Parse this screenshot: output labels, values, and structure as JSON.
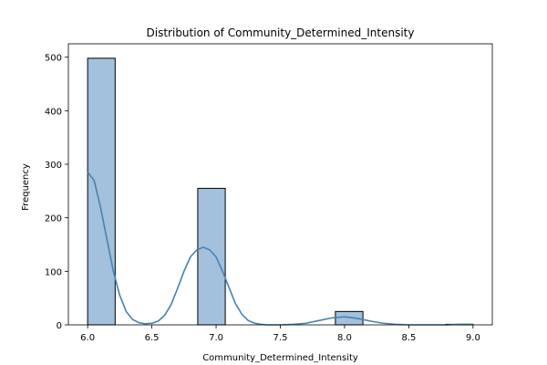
{
  "chart_data": {
    "type": "bar",
    "subtype": "histogram",
    "title": "Distribution of Community_Determined_Intensity",
    "xlabel": "Community_Determined_Intensity",
    "ylabel": "Frequency",
    "xlim": [
      5.85,
      9.15
    ],
    "ylim": [
      0,
      525
    ],
    "x_ticks": [
      "6.0",
      "6.5",
      "7.0",
      "7.5",
      "8.0",
      "8.5",
      "9.0"
    ],
    "y_ticks": [
      "0",
      "100",
      "200",
      "300",
      "400",
      "500"
    ],
    "grid": false,
    "legend": "none",
    "bar_color": "#a3c0dc",
    "bar_edge_color": "#000000",
    "kde_color": "#4682b4",
    "bins": [
      {
        "x0": 6.0,
        "x1": 6.2143,
        "count": 498
      },
      {
        "x0": 6.2143,
        "x1": 6.4286,
        "count": 0
      },
      {
        "x0": 6.4286,
        "x1": 6.6429,
        "count": 0
      },
      {
        "x0": 6.6429,
        "x1": 6.8571,
        "count": 0
      },
      {
        "x0": 6.8571,
        "x1": 7.0714,
        "count": 255
      },
      {
        "x0": 7.0714,
        "x1": 7.2857,
        "count": 0
      },
      {
        "x0": 7.2857,
        "x1": 7.5,
        "count": 0
      },
      {
        "x0": 7.5,
        "x1": 7.7143,
        "count": 0
      },
      {
        "x0": 7.7143,
        "x1": 7.9286,
        "count": 0
      },
      {
        "x0": 7.9286,
        "x1": 8.1429,
        "count": 25
      },
      {
        "x0": 8.1429,
        "x1": 8.3571,
        "count": 0
      },
      {
        "x0": 8.3571,
        "x1": 8.5714,
        "count": 0
      },
      {
        "x0": 8.5714,
        "x1": 8.7857,
        "count": 0
      },
      {
        "x0": 8.7857,
        "x1": 9.0,
        "count": 1
      }
    ],
    "kde": {
      "x": [
        6.0,
        6.05,
        6.1,
        6.15,
        6.2,
        6.25,
        6.3,
        6.35,
        6.4,
        6.45,
        6.5,
        6.55,
        6.6,
        6.65,
        6.7,
        6.75,
        6.8,
        6.85,
        6.9,
        6.95,
        7.0,
        7.05,
        7.1,
        7.15,
        7.2,
        7.25,
        7.3,
        7.35,
        7.4,
        7.45,
        7.5,
        7.6,
        7.7,
        7.8,
        7.9,
        8.0,
        8.1,
        8.2,
        8.3,
        8.4,
        8.5,
        8.6,
        8.7,
        8.8,
        8.9,
        9.0
      ],
      "y": [
        285,
        270,
        220,
        160,
        100,
        55,
        25,
        10,
        4,
        2,
        3,
        7,
        18,
        38,
        68,
        100,
        127,
        140,
        145,
        140,
        127,
        100,
        70,
        40,
        20,
        8,
        3,
        1,
        0,
        0,
        0,
        1,
        3,
        8,
        13,
        15,
        12,
        7,
        3,
        1,
        0,
        0,
        0,
        0,
        1,
        1
      ]
    }
  }
}
